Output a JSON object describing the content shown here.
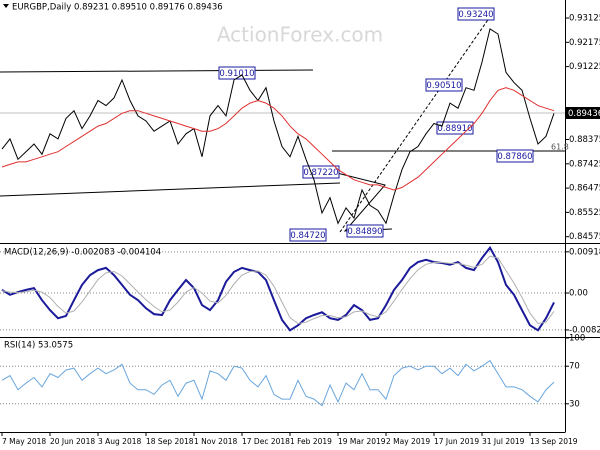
{
  "header": "EURGBP,Daily  0.89231 0.89510 0.89176 0.89436",
  "watermark": "ActionForex.com",
  "annotations": [
    "0.93240",
    "0.91010",
    "0.90510",
    "0.88910",
    "0.87860",
    "0.87220",
    "0.84890",
    "0.84720",
    "61.8"
  ],
  "last_price_label": "0.89436",
  "chart_data": [
    {
      "type": "line",
      "categories": [
        "7 May 2018",
        null,
        null,
        null,
        null,
        null,
        "20 Jun 2018",
        null,
        null,
        null,
        null,
        null,
        "3 Aug 2018",
        null,
        null,
        null,
        null,
        null,
        "18 Sep 2018",
        null,
        null,
        null,
        null,
        null,
        "1 Nov 2018",
        null,
        null,
        null,
        null,
        null,
        "17 Dec 2018",
        null,
        null,
        null,
        null,
        null,
        "1 Feb 2019",
        null,
        null,
        null,
        null,
        null,
        "19 Mar 2019",
        null,
        null,
        null,
        null,
        null,
        "2 May 2019",
        null,
        null,
        null,
        null,
        null,
        "17 Jun 2019",
        null,
        null,
        null,
        null,
        null,
        "31 Jul 2019",
        null,
        null,
        null,
        null,
        null,
        "13 Sep 2019",
        null,
        null,
        null
      ],
      "series": [
        {
          "color": "#000000",
          "values": [
            0.88,
            0.884,
            0.876,
            0.879,
            0.882,
            0.878,
            0.886,
            0.884,
            0.892,
            0.895,
            0.888,
            0.893,
            0.899,
            0.897,
            0.9,
            0.907,
            0.899,
            0.893,
            0.891,
            0.887,
            0.889,
            0.891,
            0.882,
            0.886,
            0.888,
            0.877,
            0.893,
            0.897,
            0.893,
            0.907,
            0.909,
            0.903,
            0.899,
            0.904,
            0.891,
            0.881,
            0.877,
            0.885,
            0.876,
            0.868,
            0.855,
            0.861,
            0.851,
            0.857,
            0.853,
            0.864,
            0.858,
            0.856,
            0.851,
            0.862,
            0.872,
            0.879,
            0.881,
            0.886,
            0.89,
            0.889,
            0.898,
            0.896,
            0.904,
            0.903,
            0.914,
            0.927,
            0.925,
            0.91,
            0.906,
            0.903,
            0.892,
            0.882,
            0.885,
            0.894
          ]
        },
        {
          "color": "#e0302f",
          "values": [
            0.873,
            0.874,
            0.875,
            0.875,
            0.876,
            0.877,
            0.878,
            0.879,
            0.881,
            0.883,
            0.885,
            0.887,
            0.889,
            0.89,
            0.892,
            0.894,
            0.895,
            0.895,
            0.894,
            0.893,
            0.892,
            0.891,
            0.89,
            0.889,
            0.888,
            0.887,
            0.887,
            0.888,
            0.89,
            0.893,
            0.896,
            0.898,
            0.899,
            0.898,
            0.896,
            0.893,
            0.889,
            0.886,
            0.884,
            0.881,
            0.878,
            0.875,
            0.872,
            0.87,
            0.868,
            0.867,
            0.866,
            0.866,
            0.865,
            0.864,
            0.865,
            0.867,
            0.869,
            0.872,
            0.875,
            0.878,
            0.881,
            0.884,
            0.887,
            0.89,
            0.894,
            0.899,
            0.903,
            0.904,
            0.903,
            0.901,
            0.899,
            0.897,
            0.896,
            0.895
          ]
        }
      ],
      "ylim": [
        0.8425,
        0.9383
      ],
      "yticks": [
        0.93125,
        0.92175,
        0.91225,
        0.88375,
        0.87425,
        0.86475,
        0.85525,
        0.84575
      ]
    },
    {
      "type": "line",
      "title": "MACD(12,26,9) -0.002083 -0.004104",
      "series": [
        {
          "color": "#1a1a9a",
          "values": [
            0.0007,
            -0.0004,
            0.0002,
            0.0007,
            0.0011,
            -0.0016,
            -0.0038,
            -0.0056,
            -0.0051,
            -0.0016,
            0.0018,
            0.004,
            0.0051,
            0.0056,
            0.004,
            0.0018,
            -0.0004,
            -0.0016,
            -0.0034,
            -0.0047,
            -0.0049,
            -0.0016,
            0.0007,
            0.0029,
            0.0011,
            -0.0027,
            -0.0038,
            -0.0016,
            0.0025,
            0.0047,
            0.0056,
            0.0051,
            0.0047,
            0.0029,
            -0.0016,
            -0.006,
            -0.0083,
            -0.0072,
            -0.0056,
            -0.0049,
            -0.0043,
            -0.0056,
            -0.006,
            -0.0049,
            -0.0027,
            -0.0038,
            -0.006,
            -0.0056,
            -0.0027,
            0.0007,
            0.0029,
            0.0056,
            0.0069,
            0.0074,
            0.0069,
            0.0067,
            0.0063,
            0.0069,
            0.0056,
            0.0051,
            0.0078,
            0.0101,
            0.0069,
            0.0018,
            -0.0004,
            -0.0038,
            -0.0072,
            -0.0083,
            -0.0056,
            -0.0021
          ]
        },
        {
          "color": "#b0b0b0",
          "values": [
            0.0005,
            0.0002,
            0.0001,
            0.0003,
            0.0006,
            0.0002,
            -0.001,
            -0.003,
            -0.0045,
            -0.004,
            -0.002,
            0.0005,
            0.003,
            0.0045,
            0.0048,
            0.0038,
            0.002,
            0.0002,
            -0.0015,
            -0.003,
            -0.0042,
            -0.0038,
            -0.002,
            0.0002,
            0.0012,
            0.0,
            -0.0018,
            -0.0022,
            -0.0005,
            0.002,
            0.004,
            0.0048,
            0.0049,
            0.004,
            0.0015,
            -0.002,
            -0.0055,
            -0.0068,
            -0.0065,
            -0.0057,
            -0.005,
            -0.005,
            -0.0055,
            -0.0053,
            -0.0042,
            -0.004,
            -0.0048,
            -0.0053,
            -0.0042,
            -0.0018,
            0.0008,
            0.0032,
            0.0052,
            0.0064,
            0.0068,
            0.0068,
            0.0066,
            0.0066,
            0.0062,
            0.0057,
            0.0064,
            0.0082,
            0.0078,
            0.005,
            0.0022,
            -0.001,
            -0.0045,
            -0.0068,
            -0.0065,
            -0.0041
          ]
        }
      ],
      "ylim": [
        -0.0098,
        0.0107
      ],
      "yticks": [
        0.009181,
        {
          "value": 0,
          "label": "0.00"
        },
        -0.008225
      ]
    },
    {
      "type": "line",
      "title": "RSI(14) 53.0575",
      "series": [
        {
          "color": "#6aa6dc",
          "values": [
            55,
            60,
            45,
            52,
            58,
            48,
            62,
            58,
            66,
            68,
            55,
            62,
            68,
            62,
            66,
            72,
            52,
            45,
            45,
            40,
            50,
            55,
            38,
            52,
            55,
            35,
            65,
            62,
            55,
            70,
            68,
            55,
            48,
            60,
            40,
            35,
            35,
            55,
            38,
            35,
            28,
            50,
            32,
            52,
            45,
            62,
            45,
            45,
            35,
            60,
            68,
            70,
            66,
            70,
            70,
            62,
            68,
            60,
            72,
            65,
            70,
            76,
            62,
            48,
            48,
            45,
            38,
            32,
            45,
            53.0575
          ]
        }
      ],
      "ylim": [
        0,
        100
      ],
      "yticks": [
        100,
        70,
        30
      ]
    }
  ]
}
